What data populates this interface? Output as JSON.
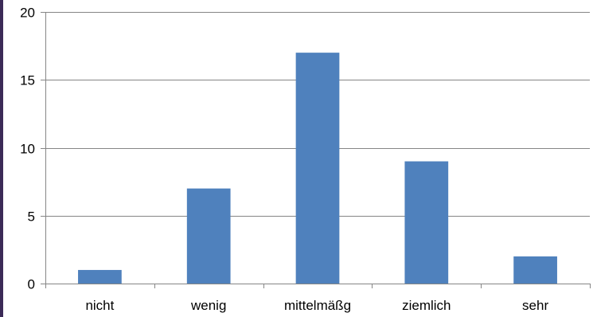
{
  "chart_data": {
    "type": "bar",
    "categories": [
      "nicht",
      "wenig",
      "mittelmäßg",
      "ziemlich",
      "sehr"
    ],
    "values": [
      1,
      7,
      17,
      9,
      2
    ],
    "ylim": [
      0,
      20
    ],
    "yticks": [
      0,
      5,
      10,
      15,
      20
    ],
    "grid": true,
    "legend": "none",
    "colors": {
      "bar": "#4f81bd",
      "grid": "#868686",
      "frame_edge": "#3b2a57"
    }
  }
}
